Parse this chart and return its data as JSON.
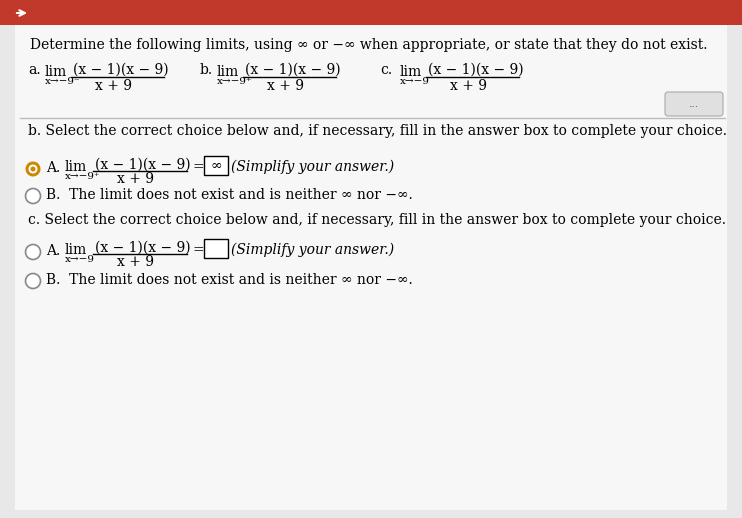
{
  "bg_color": "#e8e8e8",
  "header_color": "#c0392b",
  "paper_color": "#f0f0f0",
  "title": "Determine the following limits, using ∞ or −∞ when appropriate, or state that they do not exist.",
  "fraction_num": "(x − 1)(x − 9)",
  "fraction_den": "x + 9",
  "section_b_title": "b. Select the correct choice below and, if necessary, fill in the answer box to complete your choice.",
  "section_c_title": "c. Select the correct choice below and, if necessary, fill in the answer box to complete your choice.",
  "choice_B_text": "The limit does not exist and is neither ∞ nor −∞.",
  "simplify_text": "(Simplify your answer.)",
  "dots_text": "...",
  "radio_selected_color": "#cc7700",
  "radio_unselected_color": "#888888"
}
